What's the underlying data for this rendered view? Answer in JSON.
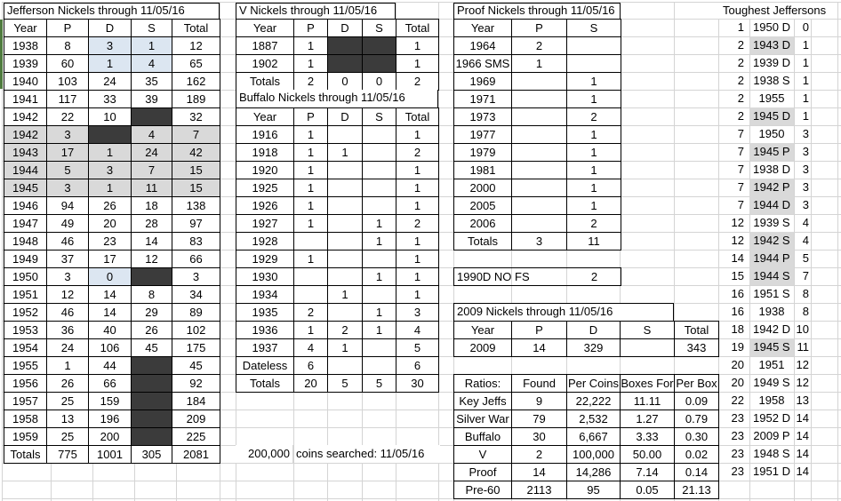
{
  "colors": {
    "highlight_blue": "#dce6f1",
    "war_gray": "#d9d9d9",
    "blackout": "#3b3b3b",
    "gridline": "#d4d4d4",
    "green_strip": "#4f7b3f",
    "table_border": "#000000"
  },
  "jefferson": {
    "title": "Jefferson Nickels through 11/05/16",
    "headers": [
      "Year",
      "P",
      "D",
      "S",
      "Total"
    ],
    "rows": [
      {
        "c": [
          "1938",
          "8",
          "3",
          "1",
          "12"
        ],
        "f": [
          "",
          "",
          "b",
          "b",
          ""
        ]
      },
      {
        "c": [
          "1939",
          "60",
          "1",
          "4",
          "65"
        ],
        "f": [
          "",
          "",
          "b",
          "b",
          ""
        ]
      },
      {
        "c": [
          "1940",
          "103",
          "24",
          "35",
          "162"
        ]
      },
      {
        "c": [
          "1941",
          "117",
          "33",
          "39",
          "189"
        ]
      },
      {
        "c": [
          "1942",
          "22",
          "10",
          "",
          "32"
        ],
        "f": [
          "",
          "",
          "",
          "k",
          ""
        ]
      },
      {
        "c": [
          "1942",
          "3",
          "",
          "4",
          "7"
        ],
        "f": [
          "g",
          "g",
          "k",
          "g",
          "g"
        ]
      },
      {
        "c": [
          "1943",
          "17",
          "1",
          "24",
          "42"
        ],
        "f": [
          "g",
          "g",
          "g",
          "g",
          "g"
        ]
      },
      {
        "c": [
          "1944",
          "5",
          "3",
          "7",
          "15"
        ],
        "f": [
          "g",
          "g",
          "g",
          "g",
          "g"
        ]
      },
      {
        "c": [
          "1945",
          "3",
          "1",
          "11",
          "15"
        ],
        "f": [
          "g",
          "g",
          "g",
          "g",
          "g"
        ]
      },
      {
        "c": [
          "1946",
          "94",
          "26",
          "18",
          "138"
        ]
      },
      {
        "c": [
          "1947",
          "49",
          "20",
          "28",
          "97"
        ]
      },
      {
        "c": [
          "1948",
          "46",
          "23",
          "14",
          "83"
        ]
      },
      {
        "c": [
          "1949",
          "37",
          "17",
          "12",
          "66"
        ]
      },
      {
        "c": [
          "1950",
          "3",
          "0",
          "",
          "3"
        ],
        "f": [
          "",
          "",
          "b",
          "k",
          ""
        ]
      },
      {
        "c": [
          "1951",
          "12",
          "14",
          "8",
          "34"
        ]
      },
      {
        "c": [
          "1952",
          "46",
          "14",
          "29",
          "89"
        ]
      },
      {
        "c": [
          "1953",
          "36",
          "40",
          "26",
          "102"
        ]
      },
      {
        "c": [
          "1954",
          "24",
          "106",
          "45",
          "175"
        ]
      },
      {
        "c": [
          "1955",
          "1",
          "44",
          "",
          "45"
        ],
        "f": [
          "",
          "",
          "",
          "k",
          ""
        ]
      },
      {
        "c": [
          "1956",
          "26",
          "66",
          "",
          "92"
        ],
        "f": [
          "",
          "",
          "",
          "k",
          ""
        ]
      },
      {
        "c": [
          "1957",
          "25",
          "159",
          "",
          "184"
        ],
        "f": [
          "",
          "",
          "",
          "k",
          ""
        ]
      },
      {
        "c": [
          "1958",
          "13",
          "196",
          "",
          "209"
        ],
        "f": [
          "",
          "",
          "",
          "k",
          ""
        ]
      },
      {
        "c": [
          "1959",
          "25",
          "200",
          "",
          "225"
        ],
        "f": [
          "",
          "",
          "",
          "k",
          ""
        ]
      },
      {
        "c": [
          "Totals",
          "775",
          "1001",
          "305",
          "2081"
        ]
      }
    ]
  },
  "v": {
    "title": "V Nickels through 11/05/16",
    "headers": [
      "Year",
      "P",
      "D",
      "S",
      "Total"
    ],
    "rows": [
      {
        "c": [
          "1887",
          "1",
          "",
          "",
          "1"
        ],
        "f": [
          "",
          "",
          "k",
          "k",
          ""
        ]
      },
      {
        "c": [
          "1902",
          "1",
          "",
          "",
          "1"
        ],
        "f": [
          "",
          "",
          "k",
          "k",
          ""
        ]
      },
      {
        "c": [
          "Totals",
          "2",
          "0",
          "0",
          "2"
        ]
      }
    ]
  },
  "buffalo": {
    "title": "Buffalo Nickels through 11/05/16",
    "headers": [
      "Year",
      "P",
      "D",
      "S",
      "Total"
    ],
    "rows": [
      {
        "c": [
          "1916",
          "1",
          "",
          "",
          "1"
        ]
      },
      {
        "c": [
          "1918",
          "1",
          "1",
          "",
          "2"
        ]
      },
      {
        "c": [
          "1920",
          "1",
          "",
          "",
          "1"
        ]
      },
      {
        "c": [
          "1925",
          "1",
          "",
          "",
          "1"
        ]
      },
      {
        "c": [
          "1926",
          "1",
          "",
          "",
          "1"
        ]
      },
      {
        "c": [
          "1927",
          "1",
          "",
          "1",
          "2"
        ]
      },
      {
        "c": [
          "1928",
          "",
          "",
          "1",
          "1"
        ]
      },
      {
        "c": [
          "1929",
          "1",
          "",
          "",
          "1"
        ]
      },
      {
        "c": [
          "1930",
          "",
          "",
          "1",
          "1"
        ]
      },
      {
        "c": [
          "1934",
          "",
          "1",
          "",
          "1"
        ]
      },
      {
        "c": [
          "1935",
          "2",
          "",
          "1",
          "3"
        ]
      },
      {
        "c": [
          "1936",
          "1",
          "2",
          "1",
          "4"
        ]
      },
      {
        "c": [
          "1937",
          "4",
          "1",
          "",
          "5"
        ]
      },
      {
        "c": [
          "Dateless",
          "6",
          "",
          "",
          "6"
        ]
      },
      {
        "c": [
          "Totals",
          "20",
          "5",
          "5",
          "30"
        ]
      }
    ]
  },
  "proof": {
    "title": "Proof Nickels through 11/05/16",
    "headers": [
      "Year",
      "P",
      "S"
    ],
    "rows": [
      {
        "c": [
          "1964",
          "2",
          ""
        ]
      },
      {
        "c": [
          "1966 SMS",
          "1",
          ""
        ]
      },
      {
        "c": [
          "1969",
          "",
          "1"
        ]
      },
      {
        "c": [
          "1971",
          "",
          "1"
        ]
      },
      {
        "c": [
          "1973",
          "",
          "2"
        ]
      },
      {
        "c": [
          "1977",
          "",
          "1"
        ]
      },
      {
        "c": [
          "1979",
          "",
          "1"
        ]
      },
      {
        "c": [
          "1981",
          "",
          "1"
        ]
      },
      {
        "c": [
          "2000",
          "",
          "1"
        ]
      },
      {
        "c": [
          "2005",
          "",
          "1"
        ]
      },
      {
        "c": [
          "2006",
          "",
          "2"
        ]
      },
      {
        "c": [
          "Totals",
          "3",
          "11"
        ]
      }
    ]
  },
  "special_1990d": {
    "label": "1990D NO FS",
    "value": "2"
  },
  "y2009": {
    "title": "2009 Nickels through 11/05/16",
    "headers": [
      "Year",
      "P",
      "D",
      "S",
      "Total"
    ],
    "rows": [
      {
        "c": [
          "2009",
          "14",
          "329",
          "",
          "343"
        ]
      }
    ]
  },
  "ratios": {
    "headers": [
      "Ratios:",
      "Found",
      "Per Coins",
      "Boxes For",
      "Per Box"
    ],
    "rows": [
      {
        "c": [
          "Key Jeffs",
          "9",
          "22,222",
          "11.11",
          "0.09"
        ]
      },
      {
        "c": [
          "Silver War",
          "79",
          "2,532",
          "1.27",
          "0.79"
        ]
      },
      {
        "c": [
          "Buffalo",
          "30",
          "6,667",
          "3.33",
          "0.30"
        ]
      },
      {
        "c": [
          "V",
          "2",
          "100,000",
          "50.00",
          "0.02"
        ]
      },
      {
        "c": [
          "Proof",
          "14",
          "14,286",
          "7.14",
          "0.14"
        ]
      },
      {
        "c": [
          "Pre-60",
          "2113",
          "95",
          "0.05",
          "21.13"
        ]
      }
    ]
  },
  "footnote": {
    "amount": "200,000",
    "text": "coins searched: 11/05/16"
  },
  "toughest": {
    "title": "Toughest Jeffersons",
    "items": [
      {
        "rank": "1",
        "year": "1950 D",
        "count": "0",
        "war": false
      },
      {
        "rank": "2",
        "year": "1943 D",
        "count": "1",
        "war": true
      },
      {
        "rank": "2",
        "year": "1939 D",
        "count": "1",
        "war": false
      },
      {
        "rank": "2",
        "year": "1938 S",
        "count": "1",
        "war": false
      },
      {
        "rank": "2",
        "year": "1955",
        "count": "1",
        "war": false
      },
      {
        "rank": "2",
        "year": "1945 D",
        "count": "1",
        "war": true
      },
      {
        "rank": "7",
        "year": "1950",
        "count": "3",
        "war": false
      },
      {
        "rank": "7",
        "year": "1945 P",
        "count": "3",
        "war": true
      },
      {
        "rank": "7",
        "year": "1938 D",
        "count": "3",
        "war": false
      },
      {
        "rank": "7",
        "year": "1942 P",
        "count": "3",
        "war": true
      },
      {
        "rank": "7",
        "year": "1944 D",
        "count": "3",
        "war": true
      },
      {
        "rank": "12",
        "year": "1939 S",
        "count": "4",
        "war": false
      },
      {
        "rank": "12",
        "year": "1942 S",
        "count": "4",
        "war": true
      },
      {
        "rank": "14",
        "year": "1944 P",
        "count": "5",
        "war": true
      },
      {
        "rank": "15",
        "year": "1944 S",
        "count": "7",
        "war": true
      },
      {
        "rank": "16",
        "year": "1951 S",
        "count": "8",
        "war": false
      },
      {
        "rank": "16",
        "year": "1938",
        "count": "8",
        "war": false
      },
      {
        "rank": "18",
        "year": "1942 D",
        "count": "10",
        "war": false
      },
      {
        "rank": "19",
        "year": "1945 S",
        "count": "11",
        "war": true
      },
      {
        "rank": "20",
        "year": "1951",
        "count": "12",
        "war": false
      },
      {
        "rank": "20",
        "year": "1949 S",
        "count": "12",
        "war": false
      },
      {
        "rank": "22",
        "year": "1958",
        "count": "13",
        "war": false
      },
      {
        "rank": "23",
        "year": "1952 D",
        "count": "14",
        "war": false
      },
      {
        "rank": "23",
        "year": "2009 P",
        "count": "14",
        "war": false
      },
      {
        "rank": "23",
        "year": "1948 S",
        "count": "14",
        "war": false
      },
      {
        "rank": "23",
        "year": "1951 D",
        "count": "14",
        "war": false
      }
    ]
  }
}
